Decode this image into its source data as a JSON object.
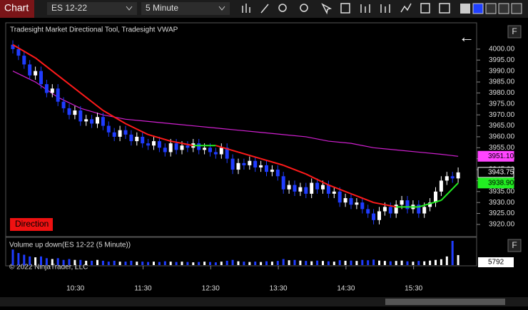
{
  "toolbar": {
    "tab": "Chart",
    "instrument": "ES 12-22",
    "interval": "5 Minute"
  },
  "chart_data": {
    "type": "candlestick",
    "title": "Tradesight Market Directional Tool, Tradesight VWAP",
    "back_button": "←",
    "panel_button": "F",
    "direction_label": "Direction",
    "up_color": "#ffffff",
    "down_color": "#1f3cff",
    "open": [
      4002,
      4000,
      3997,
      3993,
      3988,
      3990,
      3984,
      3980,
      3982,
      3976,
      3973,
      3970,
      3972,
      3967,
      3968,
      3966,
      3969,
      3965,
      3962,
      3960,
      3963,
      3961,
      3958,
      3960,
      3957,
      3956,
      3958,
      3955,
      3953,
      3957,
      3954,
      3956,
      3955,
      3957,
      3954,
      3955,
      3953,
      3952,
      3955,
      3950,
      3945,
      3948,
      3947,
      3949,
      3946,
      3947,
      3944,
      3945,
      3942,
      3936,
      3938,
      3935,
      3937,
      3934,
      3939,
      3936,
      3938,
      3934,
      3935,
      3930,
      3932,
      3929,
      3930,
      3927,
      3925,
      3922,
      3926,
      3928,
      3925,
      3929,
      3931,
      3927,
      3929,
      3925,
      3928,
      3930,
      3935,
      3940,
      3942,
      3941
    ],
    "high": [
      4004,
      4002,
      3999,
      3995,
      3992,
      3992,
      3986,
      3984,
      3984,
      3978,
      3975,
      3974,
      3974,
      3970,
      3970,
      3971,
      3971,
      3967,
      3964,
      3965,
      3965,
      3963,
      3962,
      3962,
      3959,
      3960,
      3960,
      3957,
      3959,
      3959,
      3958,
      3958,
      3959,
      3959,
      3957,
      3957,
      3955,
      3957,
      3957,
      3952,
      3950,
      3950,
      3951,
      3951,
      3949,
      3949,
      3947,
      3947,
      3944,
      3940,
      3940,
      3939,
      3939,
      3941,
      3941,
      3940,
      3940,
      3937,
      3937,
      3934,
      3934,
      3932,
      3932,
      3929,
      3927,
      3928,
      3930,
      3930,
      3931,
      3933,
      3933,
      3931,
      3931,
      3930,
      3932,
      3937,
      3942,
      3944,
      3944,
      3946
    ],
    "low": [
      3998,
      3995,
      3991,
      3986,
      3986,
      3982,
      3978,
      3978,
      3974,
      3971,
      3968,
      3968,
      3965,
      3965,
      3964,
      3964,
      3963,
      3960,
      3958,
      3958,
      3959,
      3956,
      3956,
      3955,
      3954,
      3954,
      3953,
      3951,
      3951,
      3952,
      3952,
      3953,
      3953,
      3952,
      3952,
      3951,
      3950,
      3950,
      3948,
      3943,
      3943,
      3945,
      3945,
      3944,
      3944,
      3942,
      3942,
      3940,
      3934,
      3934,
      3933,
      3933,
      3932,
      3932,
      3934,
      3934,
      3932,
      3932,
      3928,
      3928,
      3927,
      3927,
      3925,
      3923,
      3920,
      3920,
      3924,
      3923,
      3923,
      3927,
      3925,
      3925,
      3923,
      3923,
      3926,
      3928,
      3933,
      3938,
      3939,
      3939
    ],
    "close": [
      4000,
      3997,
      3993,
      3988,
      3990,
      3984,
      3980,
      3982,
      3976,
      3973,
      3970,
      3972,
      3967,
      3968,
      3966,
      3969,
      3965,
      3962,
      3960,
      3963,
      3961,
      3958,
      3960,
      3957,
      3956,
      3958,
      3955,
      3953,
      3957,
      3954,
      3956,
      3955,
      3957,
      3954,
      3955,
      3953,
      3952,
      3955,
      3950,
      3945,
      3948,
      3947,
      3949,
      3946,
      3947,
      3944,
      3945,
      3942,
      3936,
      3938,
      3935,
      3937,
      3934,
      3939,
      3936,
      3938,
      3934,
      3935,
      3930,
      3932,
      3929,
      3930,
      3927,
      3925,
      3922,
      3926,
      3928,
      3925,
      3929,
      3931,
      3927,
      3929,
      3925,
      3928,
      3930,
      3935,
      3940,
      3942,
      3941,
      3943.75
    ],
    "line_x": [
      0,
      4,
      8,
      12,
      16,
      20,
      24,
      28,
      32,
      36,
      40,
      44,
      48,
      52,
      56,
      60,
      64,
      68,
      72,
      76,
      79
    ],
    "direction_line": [
      4002,
      3996,
      3988,
      3980,
      3972,
      3966,
      3961,
      3958,
      3956,
      3956,
      3953,
      3950,
      3947,
      3943,
      3938,
      3934,
      3930,
      3928,
      3928,
      3931,
      3938.9
    ],
    "direction_colors": {
      "down": "#ff1a1a",
      "up": "#22ee22"
    },
    "vwap": [
      3990,
      3985,
      3978,
      3973,
      3970,
      3968,
      3967,
      3966,
      3965,
      3964,
      3963,
      3962,
      3961,
      3960,
      3958,
      3957,
      3955,
      3954,
      3953,
      3952,
      3951.1
    ],
    "vwap_color": "#d020d0",
    "ylim": [
      3915.1,
      4012
    ],
    "yticks": [
      {
        "value": 4000,
        "label": "4000.00"
      },
      {
        "value": 3995,
        "label": "3995.00"
      },
      {
        "value": 3990,
        "label": "3990.00"
      },
      {
        "value": 3985,
        "label": "3985.00"
      },
      {
        "value": 3980,
        "label": "3980.00"
      },
      {
        "value": 3975,
        "label": "3975.00"
      },
      {
        "value": 3970,
        "label": "3970.00"
      },
      {
        "value": 3965,
        "label": "3965.00"
      },
      {
        "value": 3960,
        "label": "3960.00"
      },
      {
        "value": 3955,
        "label": "3955.00"
      },
      {
        "value": 3950,
        "label": "3950.00"
      },
      {
        "value": 3945,
        "label": "3945.00"
      },
      {
        "value": 3940,
        "label": "3940.00"
      },
      {
        "value": 3935,
        "label": "3935.00"
      },
      {
        "value": 3930,
        "label": "3930.00"
      },
      {
        "value": 3925,
        "label": "3925.00"
      },
      {
        "value": 3920,
        "label": "3920.00"
      }
    ],
    "price_labels": [
      {
        "value": 3951.1,
        "label": "3951.10",
        "color": "#ff44ff"
      },
      {
        "value": 3943.75,
        "label": "3943.75",
        "color": "#000000"
      },
      {
        "value": 3938.9,
        "label": "3938.90",
        "color": "#22ee22"
      }
    ],
    "xticks": [
      {
        "value": 11.1,
        "label": "10:30"
      },
      {
        "value": 23.1,
        "label": "11:30"
      },
      {
        "value": 35.1,
        "label": "12:30"
      },
      {
        "value": 47.1,
        "label": "13:30"
      },
      {
        "value": 59.1,
        "label": "14:30"
      },
      {
        "value": 71.1,
        "label": "15:30"
      }
    ],
    "volume_title": "Volume up down(ES 12-22 (5 Minute))",
    "copyright": "© 2022 NinjaTrader, LLC",
    "volume": [
      9000,
      7000,
      6000,
      5000,
      4500,
      5000,
      4000,
      3500,
      4000,
      3000,
      3500,
      3000,
      3000,
      2500,
      2500,
      3000,
      2500,
      2000,
      2500,
      2000,
      2000,
      2500,
      2000,
      2000,
      1800,
      2000,
      1800,
      2200,
      2000,
      1800,
      2000,
      1800,
      1600,
      1800,
      2000,
      1800,
      1600,
      2000,
      2500,
      3000,
      2200,
      2000,
      1800,
      2000,
      1800,
      2200,
      2000,
      2400,
      3500,
      2800,
      3000,
      2600,
      2400,
      2200,
      2600,
      2400,
      2200,
      2000,
      2800,
      2500,
      2600,
      2400,
      3000,
      2800,
      3200,
      2600,
      2400,
      2200,
      2400,
      2600,
      2200,
      2000,
      2400,
      2200,
      2600,
      3000,
      3400,
      5000,
      14000,
      5792
    ],
    "volume_ylim": [
      0,
      14000
    ],
    "volume_label": 5792
  }
}
